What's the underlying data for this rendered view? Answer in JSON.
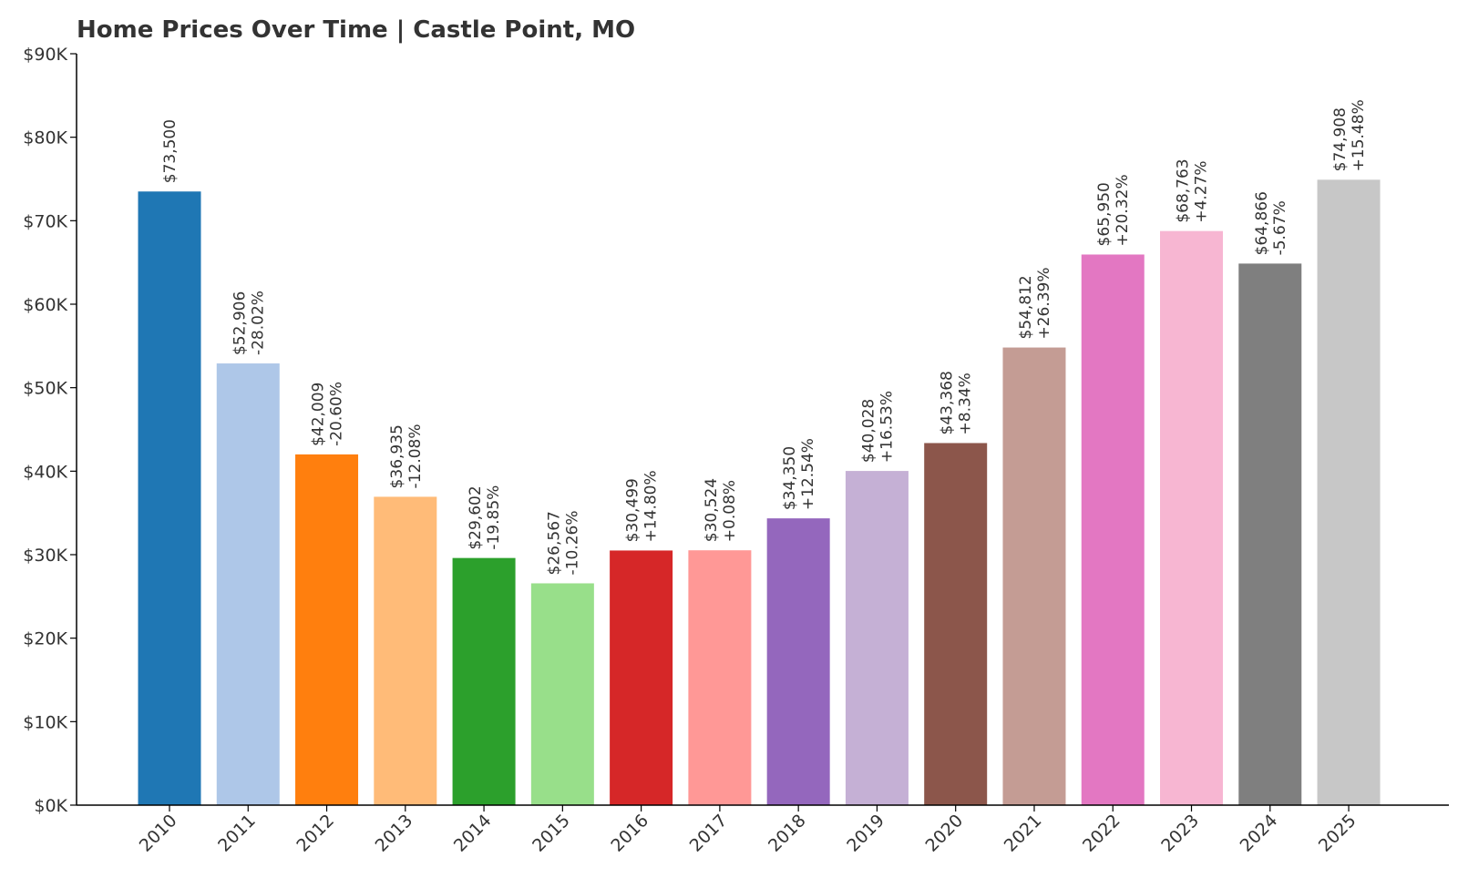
{
  "chart_data": {
    "type": "bar",
    "title": "Home Prices Over Time | Castle Point, MO",
    "xlabel": "",
    "ylabel": "",
    "ylim": [
      0,
      90000
    ],
    "yticks": [
      0,
      10000,
      20000,
      30000,
      40000,
      50000,
      60000,
      70000,
      80000,
      90000
    ],
    "ytick_labels": [
      "$0K",
      "$10K",
      "$20K",
      "$30K",
      "$40K",
      "$50K",
      "$60K",
      "$70K",
      "$80K",
      "$90K"
    ],
    "grid": false,
    "categories": [
      "2010",
      "2011",
      "2012",
      "2013",
      "2014",
      "2015",
      "2016",
      "2017",
      "2018",
      "2019",
      "2020",
      "2021",
      "2022",
      "2023",
      "2024",
      "2025"
    ],
    "values": [
      73500,
      52906,
      42009,
      36935,
      29602,
      26567,
      30499,
      30524,
      34350,
      40028,
      43368,
      54812,
      65950,
      68763,
      64866,
      74908
    ],
    "value_labels": [
      "$73,500",
      "$52,906",
      "$42,009",
      "$36,935",
      "$29,602",
      "$26,567",
      "$30,499",
      "$30,524",
      "$34,350",
      "$40,028",
      "$43,368",
      "$54,812",
      "$65,950",
      "$68,763",
      "$64,866",
      "$74,908"
    ],
    "change_labels": [
      "",
      "-28.02%",
      "-20.60%",
      "-12.08%",
      "-19.85%",
      "-10.26%",
      "+14.80%",
      "+0.08%",
      "+12.54%",
      "+16.53%",
      "+8.34%",
      "+26.39%",
      "+20.32%",
      "+4.27%",
      "-5.67%",
      "+15.48%"
    ],
    "colors": [
      "#1f77b4",
      "#aec7e8",
      "#ff7f0e",
      "#ffbb78",
      "#2ca02c",
      "#98df8a",
      "#d62728",
      "#ff9896",
      "#9467bd",
      "#c5b0d5",
      "#8c564b",
      "#c49c94",
      "#e377c2",
      "#f7b6d2",
      "#7f7f7f",
      "#c7c7c7"
    ],
    "text_color": "#333333",
    "axis_color": "#000000"
  }
}
